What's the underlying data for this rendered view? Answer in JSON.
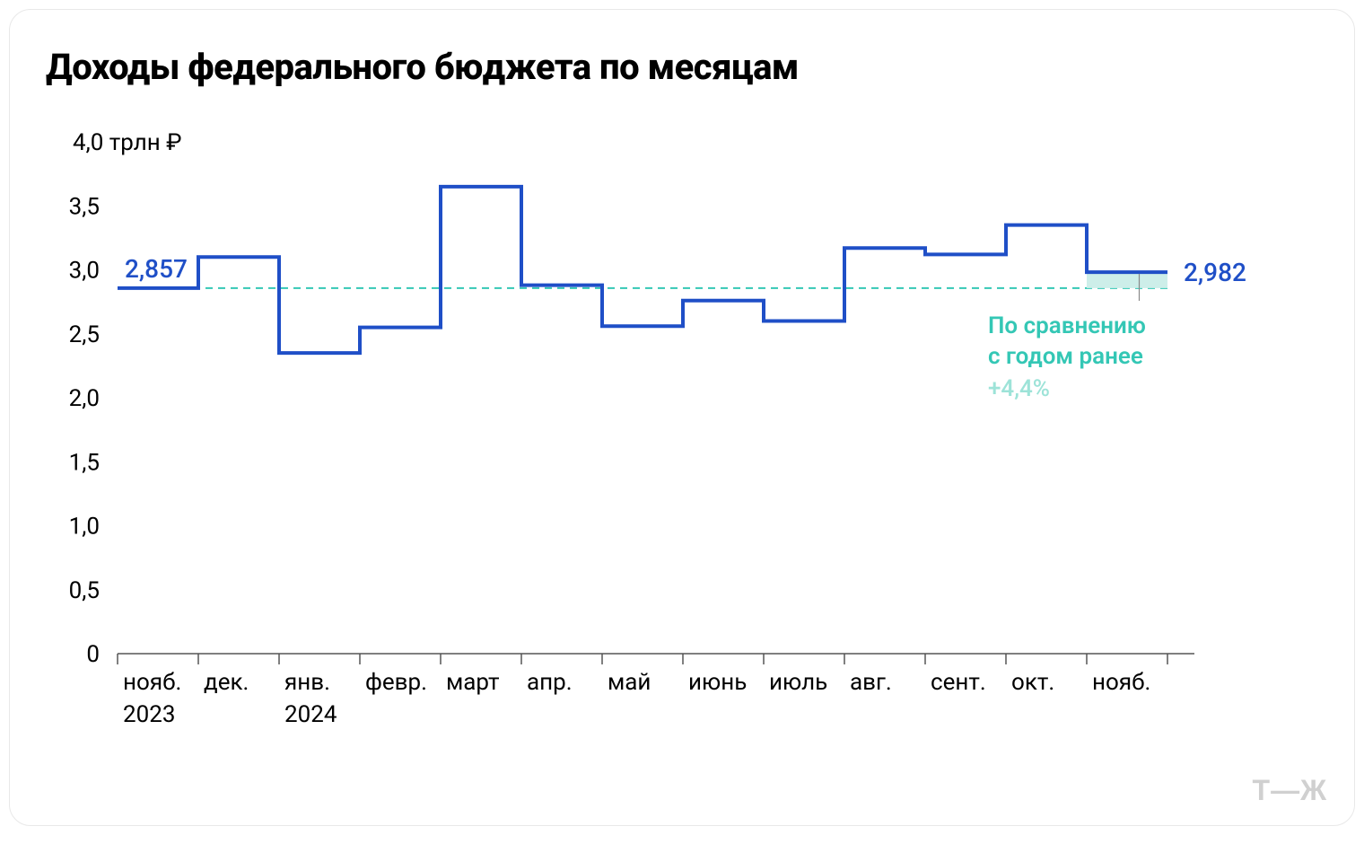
{
  "title": "Доходы федерального бюджета по месяцам",
  "chart": {
    "type": "step-line",
    "line_color": "#1f4fc7",
    "line_width": 4,
    "reference_line_color": "#34c7b5",
    "reference_line_dash": "8 6",
    "reference_fill_color": "#cdeee9",
    "axis_color": "#555555",
    "background_color": "#ffffff",
    "text_color": "#000000",
    "y_axis": {
      "min": 0,
      "max": 4.0,
      "ticks": [
        "0",
        "0,5",
        "1,0",
        "1,5",
        "2,0",
        "2,5",
        "3,0",
        "3,5"
      ],
      "tick_values": [
        0,
        0.5,
        1.0,
        1.5,
        2.0,
        2.5,
        3.0,
        3.5
      ],
      "top_label": "4,0 трлн ₽",
      "top_value": 4.0
    },
    "x_axis": {
      "labels": [
        "нояб.",
        "дек.",
        "янв.",
        "февр.",
        "март",
        "апр.",
        "май",
        "июнь",
        "июль",
        "авг.",
        "сент.",
        "окт.",
        "нояб."
      ],
      "year_labels": {
        "0": "2023",
        "2": "2024"
      }
    },
    "values": [
      2.857,
      3.1,
      2.35,
      2.55,
      3.65,
      2.88,
      2.56,
      2.76,
      2.6,
      3.17,
      3.12,
      3.35,
      2.982
    ],
    "reference_value": 2.857,
    "first_callout": "2,857",
    "last_callout": "2,982",
    "compare_label_line1": "По сравнению",
    "compare_label_line2": "с годом ранее",
    "compare_pct": "+4,4%"
  },
  "logo": "Т—Ж"
}
